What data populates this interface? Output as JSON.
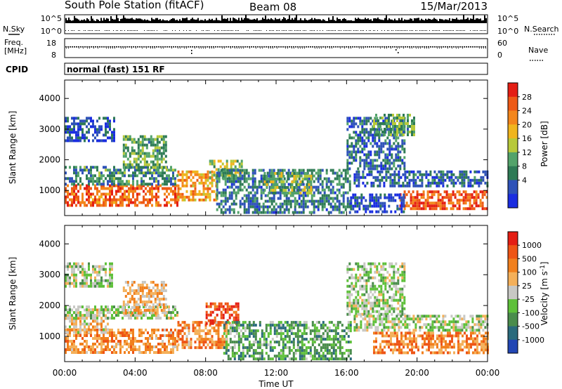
{
  "header": {
    "station": "South Pole Station (fitACF)",
    "beam": "Beam 08",
    "date": "15/Mar/2013"
  },
  "aux_panels": {
    "nsky_label": "N.Sky",
    "nsearch_label": "N.Search",
    "nsky_ticks": [
      "10^5",
      "10^0"
    ],
    "nsearch_ticks": [
      "10^5",
      "10^0"
    ],
    "freq_label_1": "Freq.",
    "freq_label_2": "[MHz]",
    "freq_ticks": [
      "18",
      "8"
    ],
    "nave_label": "Nave",
    "nave_ticks": [
      "60",
      "0"
    ],
    "cpid_label": "CPID",
    "cpid_value": "normal (fast) 151 RF"
  },
  "x_axis": {
    "label": "Time UT",
    "ticks": [
      "00:00",
      "04:00",
      "08:00",
      "12:00",
      "16:00",
      "20:00",
      "00:00"
    ]
  },
  "chart_data": [
    {
      "type": "heatmap",
      "panel": "power",
      "ylabel": "Slant Range [km]",
      "yticks": [
        1000,
        2000,
        3000,
        4000
      ],
      "ylim": [
        180,
        4600
      ],
      "xlim_hours": [
        0,
        24
      ],
      "colorbar": {
        "label": "Power [dB]",
        "ticks": [
          "28",
          "24",
          "20",
          "16",
          "12",
          "8",
          "4"
        ],
        "colors": [
          "#1a2de0",
          "#2e52b8",
          "#2e7a55",
          "#53a36a",
          "#b7c93a",
          "#f0b51e",
          "#f3861c",
          "#ee5a16",
          "#e41e14"
        ]
      },
      "regions": [
        {
          "t0": 0.0,
          "t1": 6.4,
          "r0": 500,
          "r1": 1200,
          "level": 0.8
        },
        {
          "t0": 6.4,
          "t1": 8.6,
          "r0": 650,
          "r1": 1650,
          "level": 0.68
        },
        {
          "t0": 0.0,
          "t1": 6.4,
          "r0": 1200,
          "r1": 1800,
          "level": 0.3
        },
        {
          "t0": 3.3,
          "t1": 5.8,
          "r0": 1750,
          "r1": 2800,
          "level": 0.38
        },
        {
          "t0": 0.0,
          "t1": 2.8,
          "r0": 2600,
          "r1": 3400,
          "level": 0.15
        },
        {
          "t0": 8.2,
          "t1": 10.0,
          "r0": 1400,
          "r1": 2000,
          "level": 0.48
        },
        {
          "t0": 8.6,
          "t1": 16.2,
          "r0": 300,
          "r1": 1700,
          "level": 0.26
        },
        {
          "t0": 11.3,
          "t1": 14.0,
          "r0": 900,
          "r1": 1600,
          "level": 0.44
        },
        {
          "t0": 16.0,
          "t1": 19.3,
          "r0": 1700,
          "r1": 3400,
          "level": 0.22
        },
        {
          "t0": 17.5,
          "t1": 19.8,
          "r0": 2850,
          "r1": 3500,
          "level": 0.38
        },
        {
          "t0": 16.4,
          "t1": 24.0,
          "r0": 1150,
          "r1": 1650,
          "level": 0.2
        },
        {
          "t0": 19.0,
          "t1": 24.0,
          "r0": 450,
          "r1": 1000,
          "level": 0.84
        },
        {
          "t0": 16.2,
          "t1": 19.2,
          "r0": 300,
          "r1": 900,
          "level": 0.12
        }
      ]
    },
    {
      "type": "heatmap",
      "panel": "velocity",
      "ylabel": "Slant Range [km]",
      "yticks": [
        1000,
        2000,
        3000,
        4000
      ],
      "ylim": [
        180,
        4600
      ],
      "xlim_hours": [
        0,
        24
      ],
      "colorbar": {
        "label": "Velocity [m s^-1]",
        "ticks": [
          "1000",
          "500",
          "100",
          "25",
          "-25",
          "-100",
          "-500",
          "-1000"
        ],
        "colors": [
          "#2246b4",
          "#2a6a7c",
          "#4a8c4c",
          "#5ec03a",
          "#c8c8c4",
          "#f4b05a",
          "#f1801e",
          "#ee5516",
          "#e41e14"
        ]
      },
      "regions": [
        {
          "t0": 0.0,
          "t1": 6.4,
          "r0": 500,
          "r1": 1250,
          "level": 0.7
        },
        {
          "t0": 0.0,
          "t1": 2.5,
          "r0": 1150,
          "r1": 1900,
          "level": 0.58
        },
        {
          "t0": 0.0,
          "t1": 6.4,
          "r0": 1600,
          "r1": 2000,
          "level": 0.44
        },
        {
          "t0": 0.0,
          "t1": 2.7,
          "r0": 2600,
          "r1": 3400,
          "level": 0.45
        },
        {
          "t0": 3.3,
          "t1": 5.8,
          "r0": 1750,
          "r1": 2800,
          "level": 0.62
        },
        {
          "t0": 6.4,
          "t1": 9.2,
          "r0": 600,
          "r1": 1500,
          "level": 0.7
        },
        {
          "t0": 8.0,
          "t1": 9.9,
          "r0": 1400,
          "r1": 2100,
          "level": 0.86
        },
        {
          "t0": 9.0,
          "t1": 16.2,
          "r0": 300,
          "r1": 1500,
          "level": 0.32
        },
        {
          "t0": 16.0,
          "t1": 19.3,
          "r0": 1700,
          "r1": 3400,
          "level": 0.44
        },
        {
          "t0": 16.4,
          "t1": 24.0,
          "r0": 1200,
          "r1": 1700,
          "level": 0.45
        },
        {
          "t0": 17.5,
          "t1": 24.0,
          "r0": 450,
          "r1": 1150,
          "level": 0.72
        }
      ]
    }
  ]
}
